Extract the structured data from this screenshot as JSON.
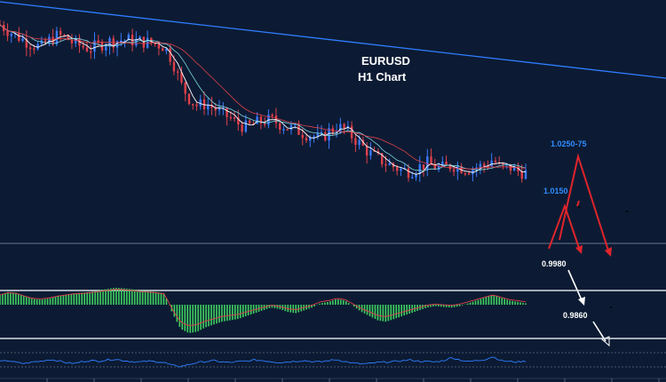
{
  "chart_data": {
    "type": "line",
    "title": "EURUSD",
    "subtitle": "H1 Chart",
    "ylim": [
      0.98,
      1.044
    ],
    "price_path": [
      1.04,
      1.0385,
      1.0372,
      1.036,
      1.035,
      1.0342,
      1.036,
      1.0372,
      1.0368,
      1.0352,
      1.0345,
      1.034,
      1.0348,
      1.0356,
      1.036,
      1.0362,
      1.036,
      1.0358,
      1.0355,
      1.0352,
      1.0345,
      1.031,
      1.025,
      1.0215,
      1.0195,
      1.02,
      1.019,
      1.0175,
      1.0165,
      1.015,
      1.014,
      1.015,
      1.0155,
      1.016,
      1.015,
      1.014,
      1.0135,
      1.0125,
      1.012,
      1.011,
      1.013,
      1.0142,
      1.0135,
      1.0115,
      1.0095,
      1.0075,
      1.0062,
      1.005,
      1.004,
      1.0032,
      1.003,
      1.004,
      1.005,
      1.004,
      1.0038,
      1.0045,
      1.004,
      1.0035,
      1.004,
      1.0045,
      1.006,
      1.0035,
      1.004,
      1.003,
      1.0025
    ],
    "annotations": [
      {
        "label": "1.0250-75",
        "color": "#2f8cff"
      },
      {
        "label": "1.0150",
        "color": "#2f8cff"
      },
      {
        "label": "0.9980",
        "color": "#ffffff"
      },
      {
        "label": "0.9860",
        "color": "#ffffff"
      }
    ],
    "histogram_values": [
      0.35,
      0.45,
      0.42,
      0.3,
      0.2,
      0.18,
      0.22,
      0.3,
      0.35,
      0.4,
      0.42,
      0.45,
      0.5,
      0.55,
      0.6,
      0.58,
      0.55,
      0.5,
      0.48,
      0.45,
      0.4,
      -0.3,
      -0.85,
      -1.0,
      -0.95,
      -0.8,
      -0.7,
      -0.6,
      -0.55,
      -0.5,
      -0.4,
      -0.3,
      -0.2,
      -0.1,
      -0.15,
      -0.25,
      -0.3,
      -0.2,
      -0.1,
      0.05,
      0.1,
      0.2,
      0.15,
      -0.05,
      -0.25,
      -0.4,
      -0.55,
      -0.6,
      -0.5,
      -0.4,
      -0.3,
      -0.2,
      -0.1,
      -0.05,
      -0.08,
      -0.1,
      -0.05,
      0.05,
      0.15,
      0.25,
      0.35,
      0.25,
      0.15,
      0.1,
      0.05
    ],
    "oscillator_values": [
      0.5,
      0.55,
      0.45,
      0.4,
      0.48,
      0.52,
      0.6,
      0.55,
      0.45,
      0.4,
      0.5,
      0.55,
      0.52,
      0.58,
      0.62,
      0.55,
      0.5,
      0.48,
      0.52,
      0.5,
      0.45,
      0.3,
      0.25,
      0.35,
      0.45,
      0.5,
      0.55,
      0.48,
      0.45,
      0.5,
      0.52,
      0.58,
      0.55,
      0.5,
      0.45,
      0.48,
      0.52,
      0.55,
      0.5,
      0.48,
      0.55,
      0.6,
      0.5,
      0.42,
      0.38,
      0.4,
      0.45,
      0.48,
      0.5,
      0.55,
      0.58,
      0.52,
      0.5,
      0.48,
      0.55,
      0.7,
      0.58,
      0.5,
      0.55,
      0.6,
      0.75,
      0.55,
      0.5,
      0.48,
      0.52
    ],
    "grid": false,
    "colors": {
      "background": "#0c1b33",
      "bull_candle": "#3a7bff",
      "bear_candle": "#e0404a",
      "trendline": "#2f7dff",
      "histogram": "#3fcf5f",
      "signal": "#e0404a",
      "oscillator": "#2f7dff",
      "projection_up": "#e0242c",
      "projection_down": "#ffffff"
    }
  }
}
